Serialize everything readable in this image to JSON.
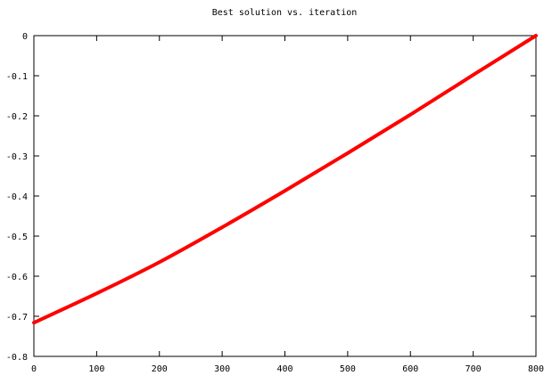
{
  "chart_data": {
    "type": "line",
    "title": "Best solution vs. iteration",
    "xlabel": "",
    "ylabel": "",
    "xlim": [
      0,
      800
    ],
    "ylim": [
      -0.8,
      0
    ],
    "x_ticks": [
      0,
      100,
      200,
      300,
      400,
      500,
      600,
      700,
      800
    ],
    "y_ticks": [
      0,
      -0.1,
      -0.2,
      -0.3,
      -0.4,
      -0.5,
      -0.6,
      -0.7,
      -0.8
    ],
    "x_tick_labels": [
      "0",
      "100",
      "200",
      "300",
      "400",
      "500",
      "600",
      "700",
      "800"
    ],
    "y_tick_labels": [
      "0",
      "-0.1",
      "-0.2",
      "-0.3",
      "-0.4",
      "-0.5",
      "-0.6",
      "-0.7",
      "-0.8"
    ],
    "grid": false,
    "legend": "none",
    "series": [
      {
        "color": "#ff0000",
        "x": [
          0,
          100,
          200,
          300,
          400,
          500,
          600,
          700,
          800
        ],
        "y": [
          -0.716,
          -0.643,
          -0.565,
          -0.478,
          -0.387,
          -0.293,
          -0.197,
          -0.098,
          0.0
        ]
      }
    ]
  }
}
